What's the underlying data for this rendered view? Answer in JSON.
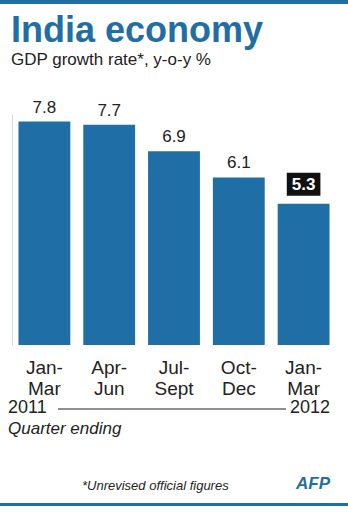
{
  "chart_data": {
    "type": "bar",
    "title": "India economy",
    "subtitle": "GDP growth rate*, y-o-y %",
    "categories": [
      "Jan-\nMar",
      "Apr-\nJun",
      "Jul-\nSept",
      "Oct-\nDec",
      "Jan-\nMar"
    ],
    "values": [
      7.8,
      7.7,
      6.9,
      6.1,
      5.3
    ],
    "color": "#1f6ea6",
    "ylim": [
      1,
      8
    ],
    "xlabel": "Quarter ending",
    "annotations": [
      "2011",
      "2012",
      "*Unrevised official figures",
      "AFP"
    ],
    "data_labels": true,
    "grid": false,
    "tick_labels": "x"
  }
}
